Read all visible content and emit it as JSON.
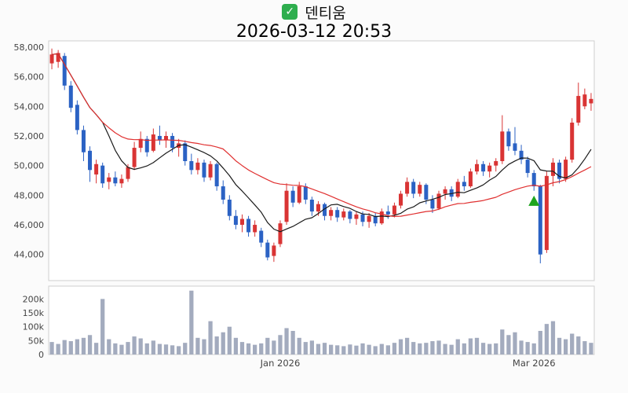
{
  "header": {
    "icon": "green-checkbox",
    "symbol": "덴티움",
    "datetime": "2026-03-12 20:53"
  },
  "chart_data": {
    "type": "candlestick",
    "title": "덴티움",
    "subtitle": "2026-03-12 20:53",
    "legend_position": "none",
    "grid": "off",
    "price_axis": {
      "min": 42500,
      "max": 58100,
      "ticks": [
        44000,
        46000,
        48000,
        50000,
        52000,
        54000,
        56000,
        58000
      ]
    },
    "volume_axis": {
      "min": 0,
      "max": 235000,
      "ticks": [
        0,
        50000,
        100000,
        150000,
        200000
      ],
      "tick_labels": [
        "0",
        "50k",
        "100k",
        "150k",
        "200k"
      ]
    },
    "x_labels": [
      {
        "label": "Jan 2026",
        "index": 36
      },
      {
        "label": "Mar 2026",
        "index": 76
      }
    ],
    "colors": {
      "up": "#d93434",
      "down": "#2b62c4",
      "ma_short": "#1a1a1a",
      "ma_long": "#e03030",
      "volume": "#a3abbe",
      "marker": "#1ea51e",
      "axis_border": "#cfcfcf",
      "tick_text": "#444444",
      "plot_bg": "#ffffff"
    },
    "overlays": [
      {
        "name": "short moving average",
        "type": "sma",
        "period": 9,
        "color_key": "ma_short"
      },
      {
        "name": "long moving average",
        "type": "sma",
        "period": 28,
        "color_key": "ma_long"
      }
    ],
    "marker": {
      "type": "triangle-up",
      "index": 76,
      "price": 47600
    },
    "candles_format": [
      "open",
      "high",
      "low",
      "close",
      "volume"
    ],
    "candles": [
      [
        56900,
        57900,
        56500,
        57500,
        45000
      ],
      [
        57000,
        57800,
        56600,
        57600,
        38000
      ],
      [
        57400,
        57600,
        55100,
        55400,
        52000
      ],
      [
        55400,
        55700,
        53600,
        53900,
        48000
      ],
      [
        54100,
        54400,
        52100,
        52400,
        55000
      ],
      [
        52400,
        52700,
        50300,
        50900,
        60000
      ],
      [
        51000,
        51300,
        48900,
        49700,
        70000
      ],
      [
        49400,
        50400,
        48800,
        50100,
        42000
      ],
      [
        50000,
        50200,
        48500,
        48800,
        200000
      ],
      [
        48900,
        49500,
        48400,
        49200,
        55000
      ],
      [
        49200,
        49600,
        48600,
        48800,
        40000
      ],
      [
        48800,
        49400,
        48500,
        49100,
        35000
      ],
      [
        49100,
        50100,
        48900,
        49900,
        45000
      ],
      [
        49900,
        51600,
        49700,
        51200,
        65000
      ],
      [
        51200,
        52300,
        50900,
        51800,
        58000
      ],
      [
        51800,
        52000,
        50600,
        50900,
        40000
      ],
      [
        51000,
        52500,
        50900,
        52100,
        50000
      ],
      [
        52000,
        52700,
        51400,
        51700,
        38000
      ],
      [
        51700,
        52300,
        51200,
        52000,
        36000
      ],
      [
        52000,
        52200,
        50900,
        51200,
        33000
      ],
      [
        51200,
        51800,
        50600,
        51500,
        30000
      ],
      [
        51500,
        51700,
        50000,
        50300,
        42000
      ],
      [
        50300,
        50800,
        49400,
        49700,
        230000
      ],
      [
        49700,
        50500,
        49400,
        50200,
        60000
      ],
      [
        50200,
        50400,
        48900,
        49200,
        55000
      ],
      [
        49200,
        50300,
        49000,
        50100,
        120000
      ],
      [
        50100,
        50200,
        48300,
        48600,
        65000
      ],
      [
        48600,
        49000,
        47400,
        47700,
        80000
      ],
      [
        47700,
        48000,
        46300,
        46600,
        100000
      ],
      [
        46600,
        47000,
        45700,
        46000,
        60000
      ],
      [
        46000,
        46700,
        45500,
        46400,
        45000
      ],
      [
        46400,
        46600,
        45200,
        45500,
        40000
      ],
      [
        45500,
        46300,
        45200,
        46000,
        35000
      ],
      [
        45600,
        45800,
        44500,
        44800,
        40000
      ],
      [
        44800,
        45000,
        43600,
        43800,
        60000
      ],
      [
        43900,
        44800,
        43500,
        44600,
        50000
      ],
      [
        44700,
        46300,
        44500,
        46100,
        70000
      ],
      [
        46200,
        48800,
        46000,
        48300,
        95000
      ],
      [
        48300,
        48600,
        47200,
        47500,
        85000
      ],
      [
        47500,
        48900,
        47400,
        48600,
        60000
      ],
      [
        48600,
        48800,
        47400,
        47700,
        45000
      ],
      [
        47700,
        47900,
        46600,
        46900,
        50000
      ],
      [
        46900,
        47600,
        46600,
        47400,
        38000
      ],
      [
        47400,
        47500,
        46300,
        46600,
        42000
      ],
      [
        46600,
        47200,
        46300,
        47000,
        35000
      ],
      [
        47000,
        47200,
        46200,
        46500,
        33000
      ],
      [
        46500,
        47100,
        46300,
        46900,
        30000
      ],
      [
        46900,
        47000,
        46100,
        46400,
        36000
      ],
      [
        46400,
        46900,
        46000,
        46700,
        32000
      ],
      [
        46700,
        46900,
        45900,
        46200,
        40000
      ],
      [
        46200,
        46800,
        45800,
        46600,
        35000
      ],
      [
        46600,
        46800,
        45900,
        46100,
        30000
      ],
      [
        46100,
        47100,
        46000,
        46900,
        38000
      ],
      [
        46900,
        47300,
        46400,
        46700,
        33000
      ],
      [
        46700,
        47500,
        46500,
        47300,
        42000
      ],
      [
        47300,
        48300,
        47100,
        48100,
        55000
      ],
      [
        48100,
        49200,
        47900,
        48900,
        60000
      ],
      [
        48900,
        49100,
        47800,
        48100,
        45000
      ],
      [
        48100,
        48900,
        47900,
        48700,
        40000
      ],
      [
        48700,
        48800,
        47400,
        47700,
        42000
      ],
      [
        47700,
        48000,
        46800,
        47100,
        48000
      ],
      [
        47100,
        48300,
        47000,
        48100,
        50000
      ],
      [
        48100,
        48600,
        47700,
        48400,
        38000
      ],
      [
        48400,
        48600,
        47600,
        47900,
        35000
      ],
      [
        47900,
        49100,
        47800,
        48900,
        55000
      ],
      [
        48900,
        49300,
        48300,
        48600,
        40000
      ],
      [
        48600,
        49800,
        48500,
        49600,
        58000
      ],
      [
        49600,
        50400,
        49400,
        50100,
        60000
      ],
      [
        50100,
        50300,
        49300,
        49600,
        42000
      ],
      [
        49600,
        50200,
        49200,
        50000,
        38000
      ],
      [
        50000,
        50500,
        49600,
        50300,
        40000
      ],
      [
        50300,
        53400,
        50100,
        52300,
        90000
      ],
      [
        52300,
        52500,
        51000,
        51300,
        70000
      ],
      [
        51500,
        52600,
        50700,
        51000,
        80000
      ],
      [
        51000,
        51400,
        50100,
        50400,
        50000
      ],
      [
        50400,
        50600,
        49200,
        49500,
        45000
      ],
      [
        49500,
        49700,
        48300,
        48600,
        40000
      ],
      [
        48600,
        48700,
        43400,
        44000,
        85000
      ],
      [
        44300,
        49600,
        44100,
        49300,
        110000
      ],
      [
        49300,
        50500,
        48600,
        50200,
        120000
      ],
      [
        50200,
        50400,
        48800,
        49100,
        60000
      ],
      [
        49100,
        50600,
        48900,
        50400,
        55000
      ],
      [
        50400,
        53200,
        50200,
        52900,
        75000
      ],
      [
        52900,
        55600,
        52700,
        54700,
        65000
      ],
      [
        54000,
        55200,
        53800,
        54800,
        48000
      ],
      [
        54200,
        54900,
        53700,
        54500,
        42000
      ]
    ]
  }
}
